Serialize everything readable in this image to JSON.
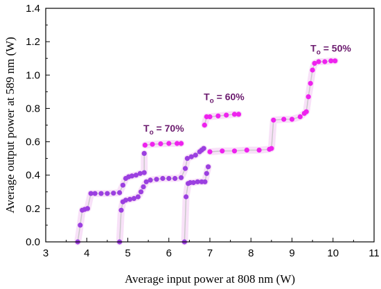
{
  "chart_data": {
    "type": "scatter",
    "title": "",
    "xlabel": "Average input power at 808 nm (W)",
    "ylabel": "Average output power at 589 nm (W)",
    "xlim": [
      3,
      11
    ],
    "ylim": [
      0,
      1.4
    ],
    "xticks": [
      "3",
      "4",
      "5",
      "6",
      "7",
      "8",
      "9",
      "10",
      "11"
    ],
    "yticks": [
      "0.0",
      "0.2",
      "0.4",
      "0.6",
      "0.8",
      "1.0",
      "1.2",
      "1.4"
    ],
    "grid": false,
    "legend": "none",
    "colors": {
      "violet": "#9b3fe0",
      "magenta": "#ee22ee",
      "connector": "#c8c8c8",
      "glow": "#f2c8f2",
      "annotation": "#6b1a6e"
    },
    "annotations": [
      {
        "main": "T",
        "sub": "o",
        "rest": " = 70%",
        "x": 5.38,
        "y": 0.66
      },
      {
        "main": "T",
        "sub": "o",
        "rest": " = 60%",
        "x": 6.85,
        "y": 0.85
      },
      {
        "main": "T",
        "sub": "o",
        "rest": " = 50%",
        "x": 9.45,
        "y": 1.14
      }
    ],
    "series": [
      {
        "color": "violet",
        "x": [
          3.78,
          3.84,
          3.89,
          3.95,
          4.02,
          4.1,
          4.2,
          4.35,
          4.5,
          4.65,
          4.8,
          4.88,
          4.95,
          5.02,
          5.1,
          5.2,
          5.3,
          5.4,
          5.4
        ],
        "y": [
          0.0,
          0.1,
          0.19,
          0.195,
          0.2,
          0.29,
          0.29,
          0.29,
          0.29,
          0.292,
          0.295,
          0.34,
          0.38,
          0.39,
          0.395,
          0.4,
          0.41,
          0.415,
          0.53
        ]
      },
      {
        "color": "magenta",
        "x": [
          5.42,
          5.6,
          5.8,
          6.0,
          6.2,
          6.3
        ],
        "y": [
          0.58,
          0.585,
          0.588,
          0.59,
          0.59,
          0.59
        ]
      },
      {
        "color": "violet",
        "x": [
          4.8,
          4.84,
          4.88,
          4.95,
          5.05,
          5.15,
          5.25,
          5.32,
          5.38,
          5.45,
          5.55,
          5.7,
          5.85,
          6.0,
          6.15,
          6.3,
          6.4,
          6.45,
          6.55,
          6.65,
          6.75,
          6.8,
          6.85
        ],
        "y": [
          0.0,
          0.19,
          0.24,
          0.25,
          0.255,
          0.26,
          0.27,
          0.3,
          0.33,
          0.36,
          0.37,
          0.375,
          0.38,
          0.38,
          0.38,
          0.385,
          0.44,
          0.5,
          0.51,
          0.52,
          0.54,
          0.55,
          0.56
        ]
      },
      {
        "color": "magenta",
        "x": [
          6.87,
          6.92,
          7.0,
          7.2,
          7.4,
          7.6,
          7.7
        ],
        "y": [
          0.7,
          0.75,
          0.75,
          0.755,
          0.76,
          0.765,
          0.765
        ]
      },
      {
        "color": "violet",
        "x": [
          6.38,
          6.42,
          6.47,
          6.52,
          6.6,
          6.7,
          6.8,
          6.88,
          6.92,
          6.96
        ],
        "y": [
          0.0,
          0.27,
          0.35,
          0.355,
          0.355,
          0.36,
          0.36,
          0.36,
          0.41,
          0.45
        ]
      },
      {
        "color": "magenta",
        "x": [
          7.0,
          7.3,
          7.6,
          7.9,
          8.2,
          8.45,
          8.5,
          8.55,
          8.8,
          9.0,
          9.2,
          9.3,
          9.35,
          9.4,
          9.45,
          9.5,
          9.55,
          9.65,
          9.8,
          9.95,
          10.05
        ],
        "y": [
          0.54,
          0.545,
          0.545,
          0.55,
          0.55,
          0.555,
          0.56,
          0.73,
          0.735,
          0.735,
          0.75,
          0.77,
          0.78,
          0.87,
          0.95,
          1.03,
          1.07,
          1.08,
          1.08,
          1.085,
          1.085
        ]
      }
    ]
  }
}
